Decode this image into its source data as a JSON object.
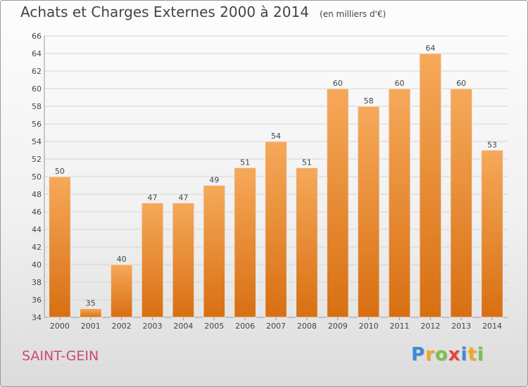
{
  "header": {
    "title": "Achats et Charges Externes 2000 à 2014",
    "unit": "(en milliers d'€)"
  },
  "footer": {
    "commune": "SAINT-GEIN",
    "logo": {
      "letters": [
        "P",
        "r",
        "o",
        "x",
        "i",
        "t",
        "i"
      ],
      "colors": [
        "#3b8bd8",
        "#f5a623",
        "#7cc043",
        "#e8443a",
        "#3b8bd8",
        "#f5a623",
        "#7cc043"
      ]
    }
  },
  "colors": {
    "bar_light": "#f6a95a",
    "bar_dark": "#d86f12",
    "grid": "#d4d4d4",
    "axis": "#9a9a9a",
    "label": "#444444",
    "commune": "#c84a74"
  },
  "chart_data": {
    "type": "bar",
    "title": "Achats et Charges Externes 2000 à 2014",
    "subtitle": "(en milliers d'€)",
    "xlabel": "",
    "ylabel": "",
    "categories": [
      "2000",
      "2001",
      "2002",
      "2003",
      "2004",
      "2005",
      "2006",
      "2007",
      "2008",
      "2009",
      "2010",
      "2011",
      "2012",
      "2013",
      "2014"
    ],
    "values": [
      50,
      35,
      40,
      47,
      47,
      49,
      51,
      54,
      51,
      60,
      58,
      60,
      64,
      60,
      53
    ],
    "ylim": [
      34,
      66
    ],
    "yticks": [
      34,
      36,
      38,
      40,
      42,
      44,
      46,
      48,
      50,
      52,
      54,
      56,
      58,
      60,
      62,
      64,
      66
    ],
    "grid": true,
    "legend": "none"
  }
}
